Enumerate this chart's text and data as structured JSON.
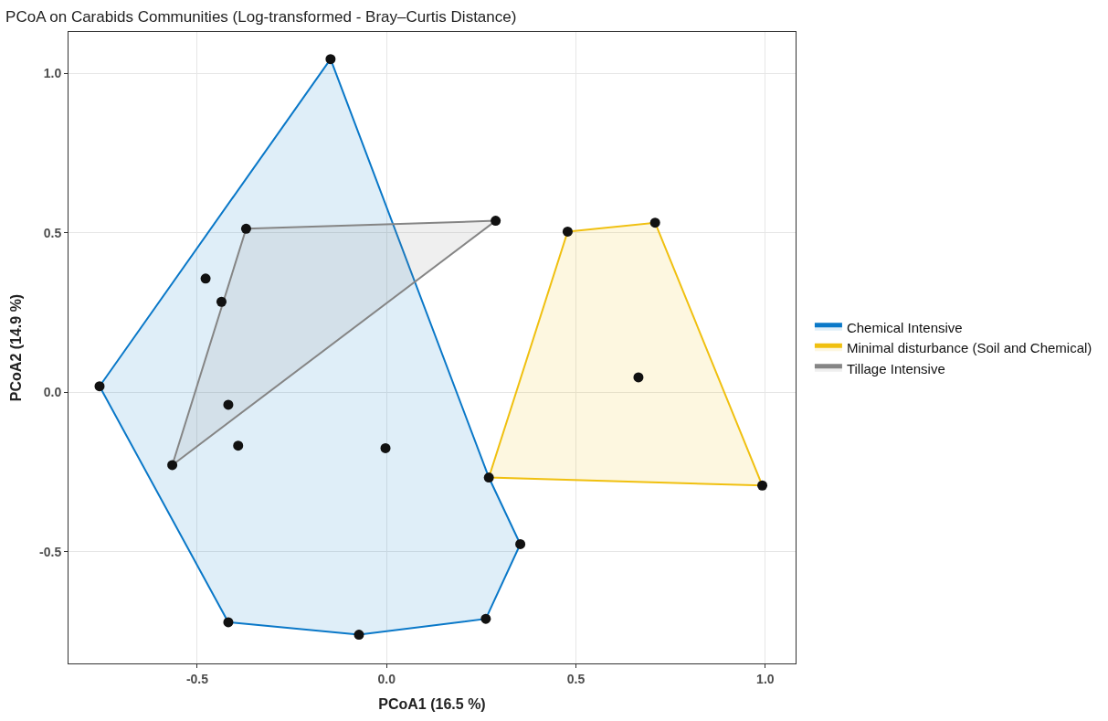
{
  "chart_data": {
    "type": "scatter",
    "title": "PCoA on Carabids Communities (Log-transformed - Bray–Curtis Distance)",
    "xlabel": "PCoA1 (16.5 %)",
    "ylabel": "PCoA2 (14.9 %)",
    "xlim": [
      -0.84,
      1.08
    ],
    "ylim": [
      -0.85,
      1.13
    ],
    "xticks": [
      {
        "value": -0.5,
        "label": "-0.5"
      },
      {
        "value": 0,
        "label": "0.0"
      },
      {
        "value": 0.5,
        "label": "0.5"
      },
      {
        "value": 1,
        "label": "1.0"
      }
    ],
    "yticks": [
      {
        "value": -0.5,
        "label": "-0.5"
      },
      {
        "value": 0,
        "label": "0.0"
      },
      {
        "value": 0.5,
        "label": "0.5"
      },
      {
        "value": 1,
        "label": "1.0"
      }
    ],
    "grid": true,
    "legend": "right",
    "series": [
      {
        "type": "area",
        "name": "Chemical Intensive",
        "color": "#0a78c8",
        "x": [
          -0.758,
          -0.148,
          0.27,
          0.353,
          0.262,
          -0.073,
          -0.418,
          -0.758
        ],
        "values": [
          0.019,
          1.045,
          -0.267,
          -0.476,
          -0.71,
          -0.76,
          -0.721,
          0.019
        ]
      },
      {
        "type": "area",
        "name": "Minimal disturbance (Soil and Chemical)",
        "color": "#f0c010",
        "x": [
          0.478,
          0.709,
          0.992,
          0.27,
          0.478
        ],
        "values": [
          0.504,
          0.532,
          -0.292,
          -0.267,
          0.504
        ]
      },
      {
        "type": "area",
        "name": "Tillage Intensive",
        "color": "#858585",
        "x": [
          -0.371,
          0.288,
          -0.566,
          -0.371
        ],
        "values": [
          0.513,
          0.538,
          -0.228,
          0.513
        ]
      },
      {
        "marker": "circle",
        "color": "#111111",
        "x": [
          -0.148,
          -0.758,
          -0.371,
          0.288,
          -0.478,
          -0.436,
          -0.418,
          -0.392,
          -0.003,
          -0.566,
          0.27,
          0.478,
          0.709,
          0.665,
          0.992,
          0.353,
          0.262,
          -0.073,
          -0.418
        ],
        "values": [
          1.045,
          0.019,
          0.513,
          0.538,
          0.357,
          0.284,
          -0.039,
          -0.167,
          -0.175,
          -0.228,
          -0.267,
          0.504,
          0.532,
          0.047,
          -0.292,
          -0.476,
          -0.71,
          -0.76,
          -0.721
        ]
      }
    ]
  }
}
